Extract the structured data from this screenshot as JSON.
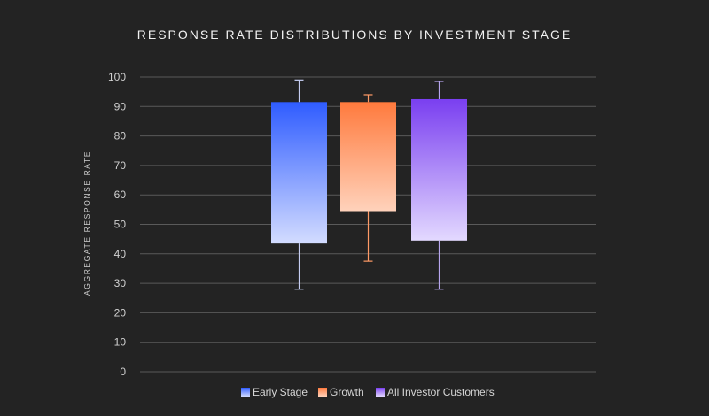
{
  "chart_data": {
    "type": "boxplot",
    "title": "RESPONSE RATE DISTRIBUTIONS BY INVESTMENT STAGE",
    "xlabel": "",
    "ylabel": "AGGREGATE RESPONSE RATE",
    "ylim": [
      0,
      100
    ],
    "yticks": [
      0,
      10,
      20,
      30,
      40,
      50,
      60,
      70,
      80,
      90,
      100
    ],
    "grid": true,
    "legend_position": "bottom-center",
    "series": [
      {
        "name": "Early Stage",
        "min": 28,
        "q1": 43.5,
        "q3": 91.5,
        "max": 99,
        "color_top": "#2f5cff",
        "color_bottom": "#d3dcff",
        "whisker_color": "#c5cdf2"
      },
      {
        "name": "Growth",
        "min": 37.5,
        "q1": 54.5,
        "q3": 91.5,
        "max": 94,
        "color_top": "#ff7a3d",
        "color_bottom": "#ffd2bb",
        "whisker_color": "#ff9a66"
      },
      {
        "name": "All Investor Customers",
        "min": 28,
        "q1": 44.5,
        "q3": 92.5,
        "max": 98.5,
        "color_top": "#7a3ff0",
        "color_bottom": "#e3d9ff",
        "whisker_color": "#b7a6ee"
      }
    ]
  }
}
